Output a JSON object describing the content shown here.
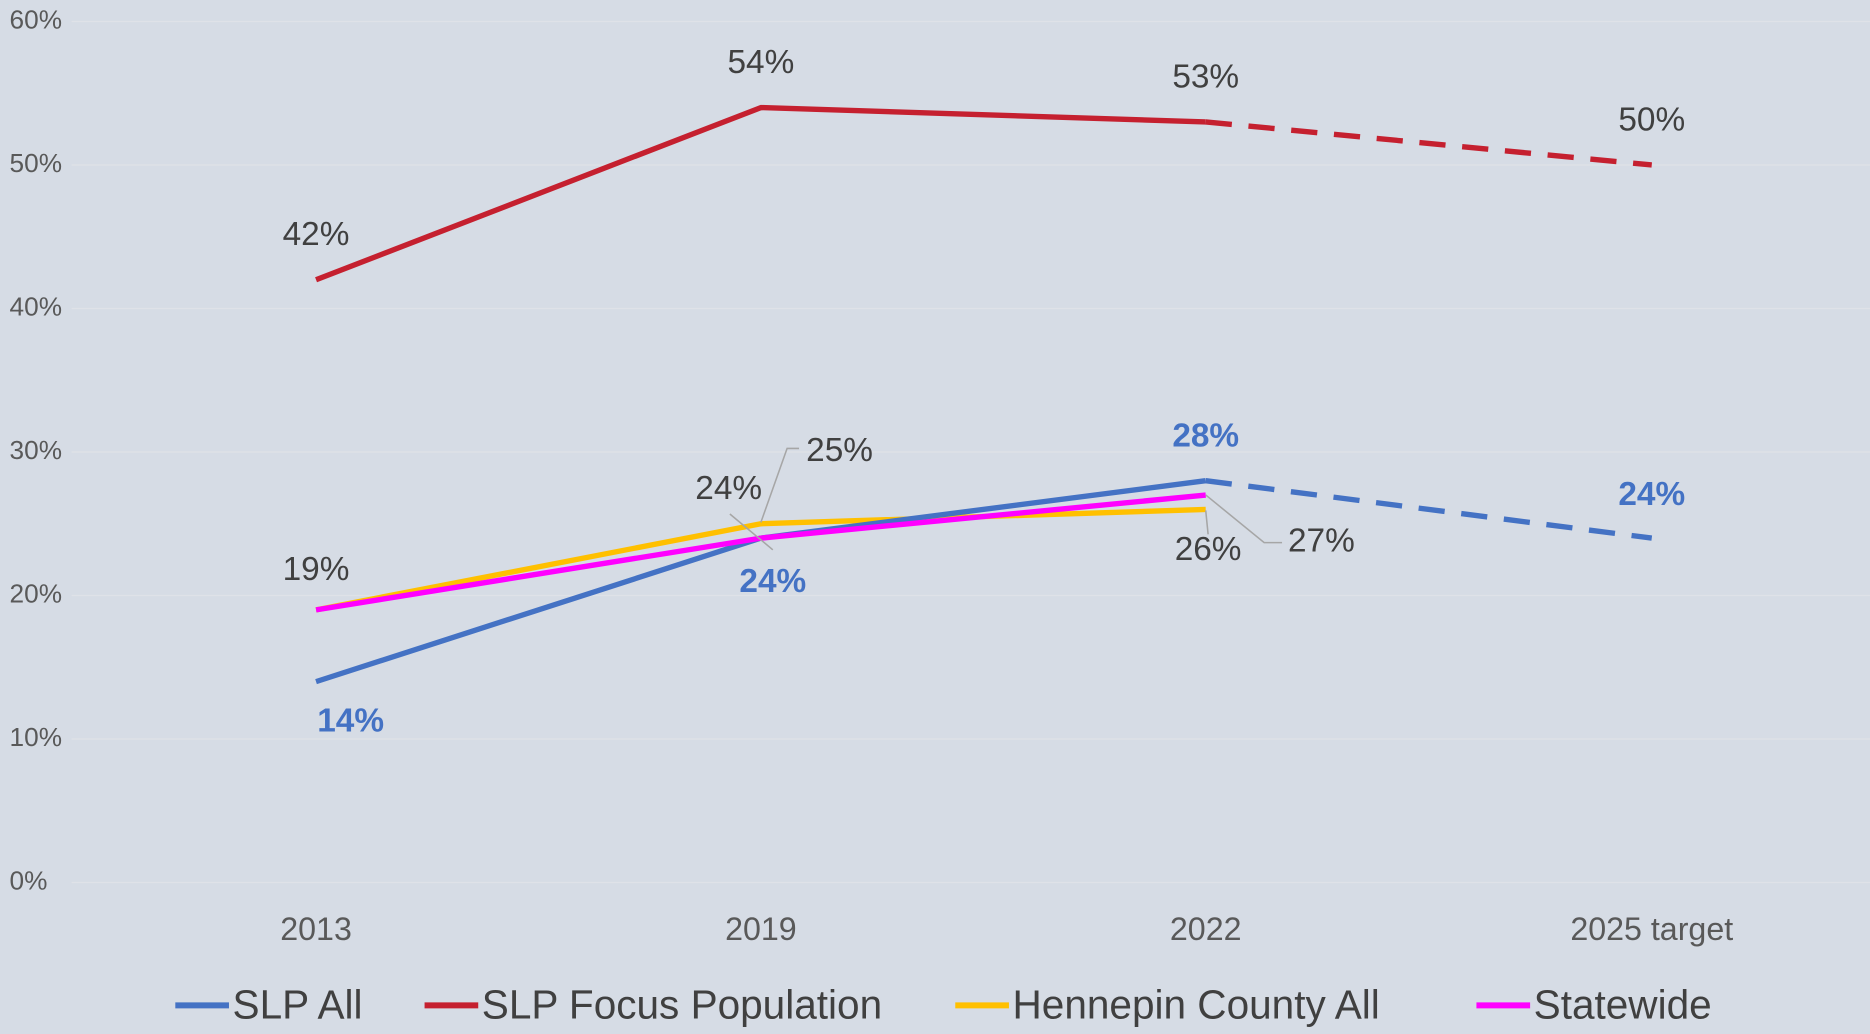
{
  "chart_data": {
    "type": "line",
    "categories": [
      "2013",
      "2019",
      "2022",
      "2025 target"
    ],
    "ylim": [
      0,
      60
    ],
    "yticks": [
      {
        "value": 0,
        "label": "0%"
      },
      {
        "value": 10,
        "label": "10%"
      },
      {
        "value": 20,
        "label": "20%"
      },
      {
        "value": 30,
        "label": "30%"
      },
      {
        "value": 40,
        "label": "40%"
      },
      {
        "value": 50,
        "label": "50%"
      },
      {
        "value": 60,
        "label": "60%"
      }
    ],
    "grid": true,
    "legend": "bottom",
    "series": [
      {
        "name": "SLP All",
        "color": "#4472c4",
        "values": [
          14,
          24,
          28,
          24
        ],
        "value_labels": [
          "14%",
          "24%",
          "28%",
          "24%"
        ],
        "label_color": "#4472c4",
        "label_bold": true,
        "dashed_last_segment": true
      },
      {
        "name": "SLP Focus Population",
        "color": "#c5202f",
        "values": [
          42,
          54,
          53,
          50
        ],
        "value_labels": [
          "42%",
          "54%",
          "53%",
          "50%"
        ],
        "dashed_last_segment": true
      },
      {
        "name": "Hennepin County All",
        "color": "#ffc000",
        "values": [
          19,
          25,
          26,
          null
        ],
        "value_labels": [
          "19%",
          "25%",
          "26%",
          null
        ]
      },
      {
        "name": "Statewide",
        "color": "#ff00ff",
        "values": [
          19,
          24,
          27,
          null
        ],
        "value_labels": [
          null,
          "24%",
          "27%",
          null
        ]
      }
    ]
  }
}
